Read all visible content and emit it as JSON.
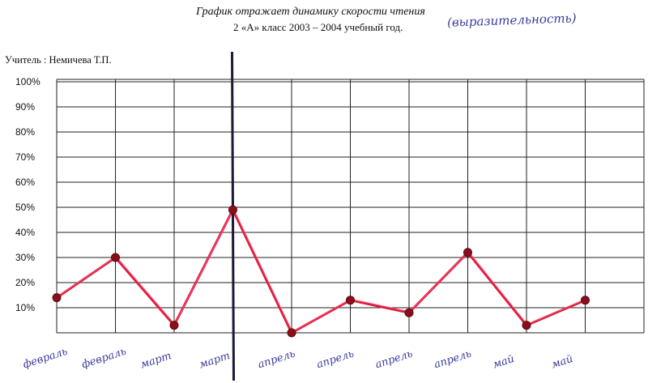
{
  "header": {
    "title": "График отражает динамику скорости чтения",
    "subtitle": "2 «А» класс 2003 – 2004 учебный год.",
    "teacher": "Учитель : Немичева Т.П.",
    "handwritten_note": "(выразительность)"
  },
  "chart_data": {
    "type": "line",
    "title": "График отражает динамику скорости чтения",
    "subtitle": "2 «А» класс 2003 – 2004 учебный год.",
    "xlabel": "",
    "ylabel": "",
    "y_ticks": [
      "10%",
      "20%",
      "30%",
      "40%",
      "50%",
      "60%",
      "70%",
      "80%",
      "90%",
      "100%"
    ],
    "ylim": [
      0,
      100
    ],
    "grid": true,
    "categories": [
      "февраль",
      "февраль",
      "март",
      "март",
      "апрель",
      "апрель",
      "апрель",
      "апрель",
      "май",
      "май"
    ],
    "values": [
      14,
      30,
      3,
      49,
      0,
      13,
      8,
      32,
      3,
      13
    ],
    "line_color": "#e0193c",
    "marker_color": "#8b0f1a",
    "divider_color": "#1a1a3a",
    "label_color": "#3a3a9c"
  }
}
